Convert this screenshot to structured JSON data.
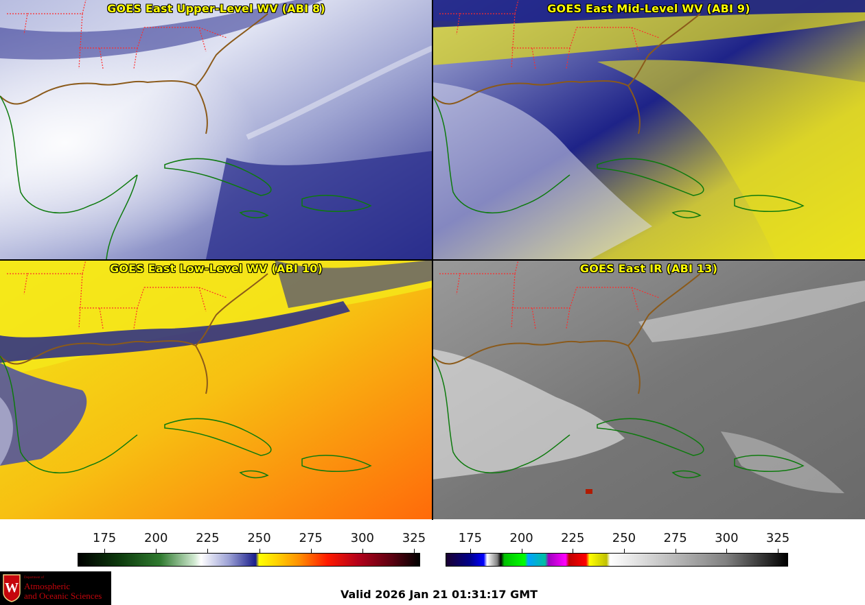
{
  "panels": [
    {
      "title": "GOES East Upper-Level WV (ABI 8)",
      "palette": "wv-blue"
    },
    {
      "title": "GOES East Mid-Level WV (ABI 9)",
      "palette": "wv-blue-yellow"
    },
    {
      "title": "GOES East Low-Level WV (ABI 10)",
      "palette": "wv-yellow-orange"
    },
    {
      "title": "GOES East IR (ABI 13)",
      "palette": "ir-gray"
    }
  ],
  "colors": {
    "title_text": "#ffff00",
    "state_borders": "#ff2a2a",
    "coastlines": "#0d7a0d",
    "us_coast": "#8b5a1a"
  },
  "wv_scale": {
    "ticks": [
      "175",
      "200",
      "225",
      "250",
      "275",
      "300",
      "325"
    ],
    "values": [
      175,
      200,
      225,
      250,
      275,
      300,
      325
    ],
    "range": [
      162,
      328
    ]
  },
  "ir_scale": {
    "ticks": [
      "175",
      "200",
      "225",
      "250",
      "275",
      "300",
      "325"
    ],
    "values": [
      175,
      200,
      225,
      250,
      275,
      300,
      325
    ],
    "range": [
      163,
      330
    ]
  },
  "logo": {
    "dept": "Department of",
    "line1": "Atmospheric",
    "line2": "and Oceanic Sciences",
    "seal_letter": "W"
  },
  "valid_time": "Valid 2026 Jan 21 01:31:17 GMT"
}
